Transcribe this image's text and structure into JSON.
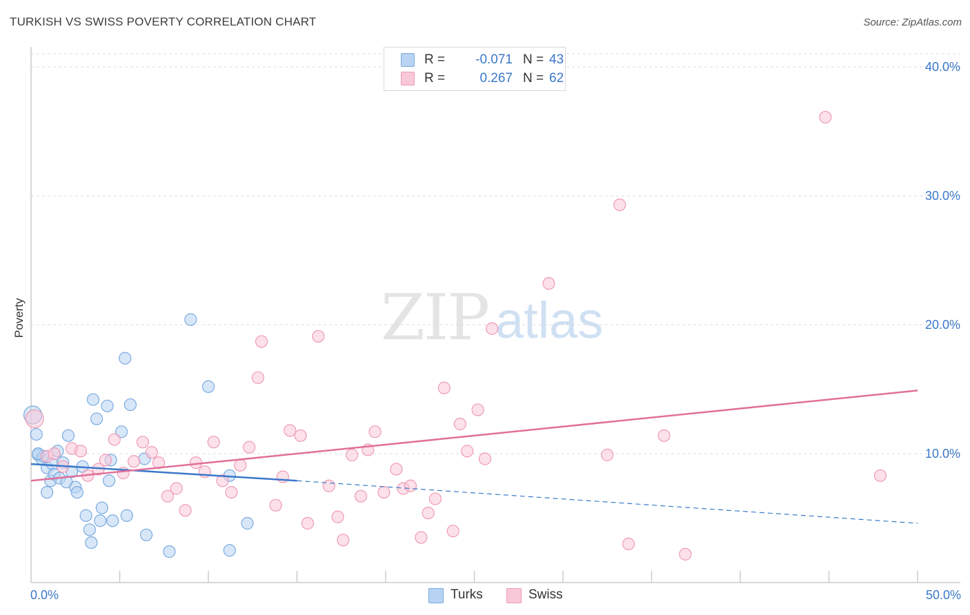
{
  "header": {
    "title": "TURKISH VS SWISS POVERTY CORRELATION CHART",
    "source": "Source: ZipAtlas.com"
  },
  "watermark": {
    "zip": "ZIP",
    "atlas": "atlas"
  },
  "stats": [
    {
      "r_label": "R =",
      "r": "-0.071",
      "n_label": "N =",
      "n": "43",
      "fill": "#b8d3f3",
      "stroke": "#7aaae0"
    },
    {
      "r_label": "R =",
      "r": "0.267",
      "n_label": "N =",
      "n": "62",
      "fill": "#f9c8d8",
      "stroke": "#ee9ab6"
    }
  ],
  "legend": [
    {
      "name": "Turks",
      "fill": "#b8d3f3",
      "stroke": "#7aaae0"
    },
    {
      "name": "Swiss",
      "fill": "#f9c8d8",
      "stroke": "#ee9ab6"
    }
  ],
  "chart_data": {
    "type": "scatter",
    "title": "TURKISH VS SWISS POVERTY CORRELATION CHART",
    "xlabel": "",
    "ylabel": "Poverty",
    "xlim": [
      0,
      50
    ],
    "ylim": [
      0,
      40
    ],
    "x_tick_labels": [
      "0.0%",
      "50.0%"
    ],
    "y_ticks": [
      10,
      20,
      30,
      40
    ],
    "y_tick_labels": [
      "10.0%",
      "20.0%",
      "30.0%",
      "40.0%"
    ],
    "grid": "horizontal dashed",
    "legend_position": "bottom-center",
    "colors": {
      "turks": "#3a78c9",
      "swiss": "#e0709a",
      "axis_text": "#3a78c9"
    },
    "series": [
      {
        "name": "Turks",
        "color": "#7aaae0",
        "points": [
          [
            0.1,
            13.0
          ],
          [
            0.3,
            11.5
          ],
          [
            0.4,
            9.9
          ],
          [
            0.6,
            9.6
          ],
          [
            0.7,
            9.8
          ],
          [
            0.9,
            8.9
          ],
          [
            1.1,
            7.9
          ],
          [
            1.2,
            9.2
          ],
          [
            1.3,
            8.4
          ],
          [
            1.5,
            10.2
          ],
          [
            1.6,
            8.1
          ],
          [
            1.8,
            9.3
          ],
          [
            2.0,
            7.8
          ],
          [
            2.1,
            11.4
          ],
          [
            2.3,
            8.6
          ],
          [
            2.5,
            7.4
          ],
          [
            2.6,
            7.0
          ],
          [
            2.9,
            9.0
          ],
          [
            3.1,
            5.2
          ],
          [
            3.3,
            4.1
          ],
          [
            3.4,
            3.1
          ],
          [
            3.5,
            14.2
          ],
          [
            3.7,
            12.7
          ],
          [
            3.9,
            4.8
          ],
          [
            4.0,
            5.8
          ],
          [
            4.3,
            13.7
          ],
          [
            4.4,
            7.9
          ],
          [
            4.6,
            4.8
          ],
          [
            4.5,
            9.5
          ],
          [
            5.1,
            11.7
          ],
          [
            5.3,
            17.4
          ],
          [
            5.4,
            5.2
          ],
          [
            5.6,
            13.8
          ],
          [
            6.4,
            9.6
          ],
          [
            6.5,
            3.7
          ],
          [
            7.8,
            2.4
          ],
          [
            9.0,
            20.4
          ],
          [
            10.0,
            15.2
          ],
          [
            11.2,
            8.3
          ],
          [
            11.2,
            2.5
          ],
          [
            12.2,
            4.6
          ],
          [
            0.9,
            7.0
          ],
          [
            0.4,
            10.0
          ]
        ]
      },
      {
        "name": "Swiss",
        "color": "#ee9ab6",
        "points": [
          [
            0.2,
            12.7
          ],
          [
            0.9,
            9.8
          ],
          [
            1.3,
            10.0
          ],
          [
            1.8,
            9.0
          ],
          [
            2.3,
            10.4
          ],
          [
            2.8,
            10.2
          ],
          [
            3.2,
            8.3
          ],
          [
            3.8,
            8.8
          ],
          [
            4.2,
            9.5
          ],
          [
            4.7,
            11.1
          ],
          [
            5.2,
            8.5
          ],
          [
            5.8,
            9.4
          ],
          [
            6.3,
            10.9
          ],
          [
            6.8,
            10.1
          ],
          [
            7.2,
            9.3
          ],
          [
            7.7,
            6.7
          ],
          [
            8.2,
            7.3
          ],
          [
            8.7,
            5.6
          ],
          [
            9.3,
            9.3
          ],
          [
            9.8,
            8.6
          ],
          [
            10.3,
            10.9
          ],
          [
            10.8,
            7.9
          ],
          [
            11.3,
            7.0
          ],
          [
            11.8,
            9.1
          ],
          [
            12.3,
            10.5
          ],
          [
            12.8,
            15.9
          ],
          [
            13.0,
            18.7
          ],
          [
            13.8,
            6.0
          ],
          [
            14.2,
            8.2
          ],
          [
            14.6,
            11.8
          ],
          [
            15.2,
            11.4
          ],
          [
            15.6,
            4.6
          ],
          [
            16.2,
            19.1
          ],
          [
            16.8,
            7.5
          ],
          [
            17.3,
            5.1
          ],
          [
            17.6,
            3.3
          ],
          [
            18.1,
            9.9
          ],
          [
            18.6,
            6.7
          ],
          [
            19.0,
            10.3
          ],
          [
            19.4,
            11.7
          ],
          [
            19.9,
            7.0
          ],
          [
            20.6,
            8.8
          ],
          [
            21.0,
            7.3
          ],
          [
            21.4,
            7.5
          ],
          [
            22.0,
            3.5
          ],
          [
            22.4,
            5.4
          ],
          [
            22.8,
            6.5
          ],
          [
            23.3,
            15.1
          ],
          [
            23.8,
            4.0
          ],
          [
            24.2,
            12.3
          ],
          [
            24.6,
            10.2
          ],
          [
            25.2,
            13.4
          ],
          [
            25.6,
            9.6
          ],
          [
            26.0,
            19.7
          ],
          [
            29.2,
            23.2
          ],
          [
            32.5,
            9.9
          ],
          [
            33.2,
            29.3
          ],
          [
            33.7,
            3.0
          ],
          [
            35.7,
            11.4
          ],
          [
            36.9,
            2.2
          ],
          [
            44.8,
            36.1
          ],
          [
            47.9,
            8.3
          ]
        ]
      }
    ],
    "trend_lines": [
      {
        "series": "Turks",
        "solid": [
          [
            0,
            9.2
          ],
          [
            15,
            7.9
          ]
        ],
        "dashed": [
          [
            15,
            7.9
          ],
          [
            50,
            4.6
          ]
        ]
      },
      {
        "series": "Swiss",
        "solid": [
          [
            0,
            7.9
          ],
          [
            50,
            14.9
          ]
        ]
      }
    ]
  }
}
